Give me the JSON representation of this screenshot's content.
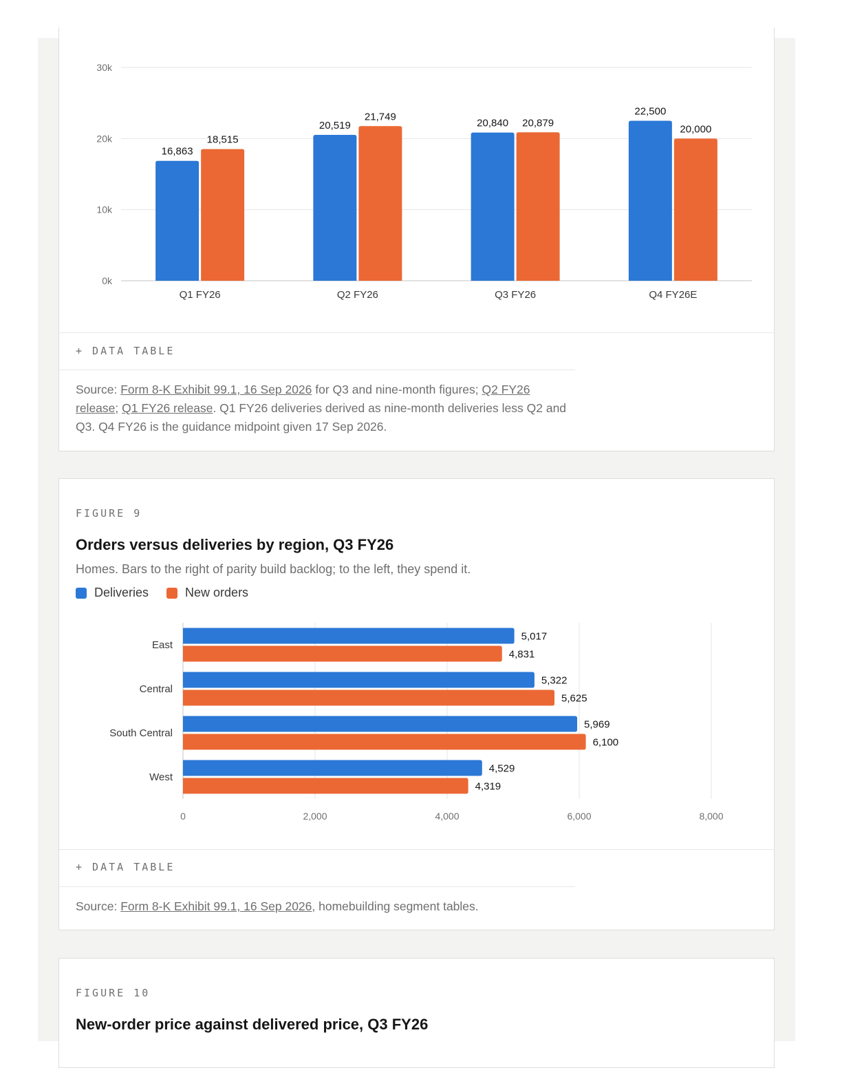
{
  "figure8": {
    "data_table_label": "+ DATA TABLE",
    "source": {
      "prefix": "Source: ",
      "link1": "Form 8-K Exhibit 99.1, 16 Sep 2026",
      "mid1": " for Q3 and nine-month figures; ",
      "link2": "Q2 FY26 release",
      "mid2": "; ",
      "link3": "Q1 FY26 release",
      "suffix": ". Q1 FY26 deliveries derived as nine-month deliveries less Q2 and Q3. Q4 FY26 is the guidance midpoint given 17 Sep 2026."
    }
  },
  "figure9": {
    "eyebrow": "FIGURE 9",
    "title": "Orders versus deliveries by region, Q3 FY26",
    "subtitle": "Homes. Bars to the right of parity build backlog; to the left, they spend it.",
    "legend": [
      "Deliveries",
      "New orders"
    ],
    "data_table_label": "+ DATA TABLE",
    "source": {
      "prefix": "Source: ",
      "link1": "Form 8-K Exhibit 99.1, 16 Sep 2026",
      "suffix": ", homebuilding segment tables."
    }
  },
  "figure10": {
    "eyebrow": "FIGURE 10",
    "title": "New-order price against delivered price, Q3 FY26"
  },
  "colors": {
    "deliveries": "#2b78d6",
    "new_orders": "#eb6834"
  },
  "chart_data": [
    {
      "type": "bar",
      "orientation": "vertical",
      "categories": [
        "Q1 FY26",
        "Q2 FY26",
        "Q3 FY26",
        "Q4 FY26E"
      ],
      "series": [
        {
          "values": [
            16863,
            20519,
            20840,
            22500
          ]
        },
        {
          "values": [
            18515,
            21749,
            20879,
            20000
          ]
        }
      ],
      "data_labels": [
        [
          "16,863",
          "20,519",
          "20,840",
          "22,500"
        ],
        [
          "18,515",
          "21,749",
          "20,879",
          "20,000"
        ]
      ],
      "ylim": [
        0,
        30000
      ],
      "yticks": [
        0,
        10000,
        20000,
        30000
      ],
      "ytick_labels": [
        "0k",
        "10k",
        "20k",
        "30k"
      ],
      "grid": true
    },
    {
      "type": "bar",
      "orientation": "horizontal",
      "categories": [
        "East",
        "Central",
        "South Central",
        "West"
      ],
      "series": [
        {
          "name": "Deliveries",
          "values": [
            5017,
            5322,
            5969,
            4529
          ]
        },
        {
          "name": "New orders",
          "values": [
            4831,
            5625,
            6100,
            4319
          ]
        }
      ],
      "data_labels": [
        [
          "5,017",
          "5,322",
          "5,969",
          "4,529"
        ],
        [
          "4,831",
          "5,625",
          "6,100",
          "4,319"
        ]
      ],
      "xlim": [
        0,
        8000
      ],
      "xticks": [
        0,
        2000,
        4000,
        6000,
        8000
      ],
      "xtick_labels": [
        "0",
        "2,000",
        "4,000",
        "6,000",
        "8,000"
      ],
      "grid": true,
      "legend_position": "top-left"
    }
  ]
}
